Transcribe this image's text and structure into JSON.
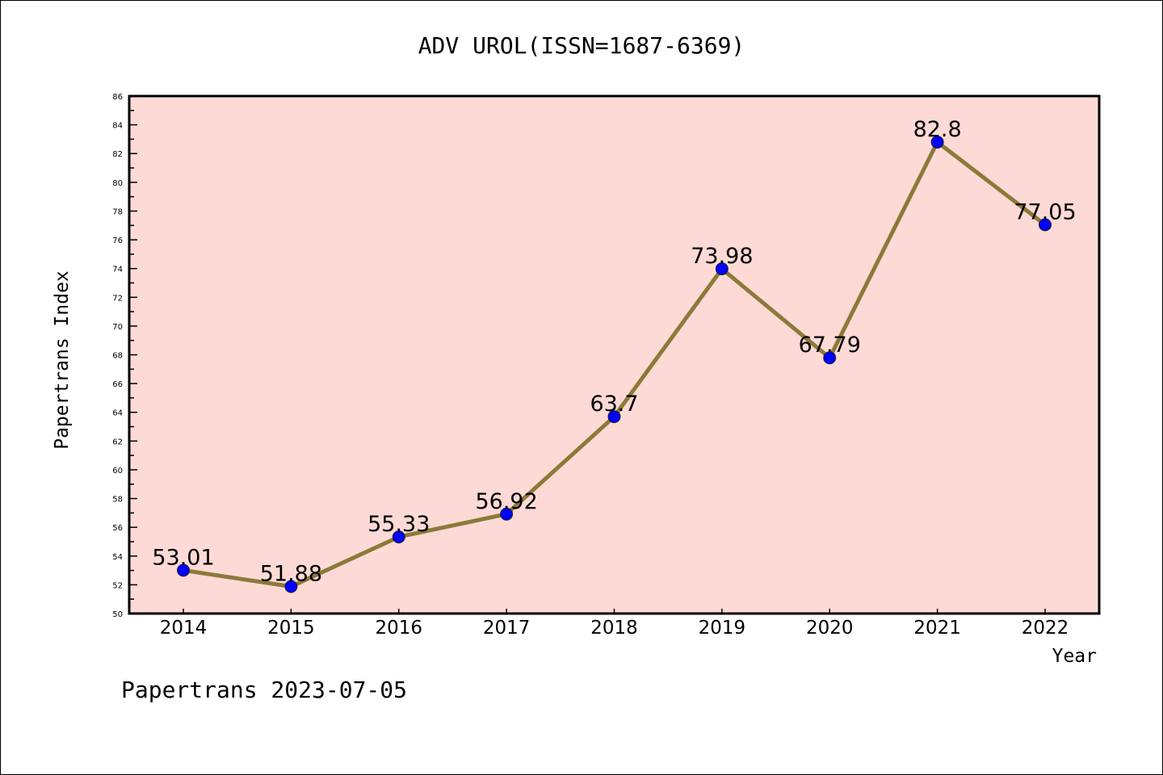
{
  "chart_data": {
    "type": "line",
    "title": "ADV UROL(ISSN=1687-6369)",
    "xlabel": "Year",
    "ylabel": "Papertrans Index",
    "categories": [
      "2014",
      "2015",
      "2016",
      "2017",
      "2018",
      "2019",
      "2020",
      "2021",
      "2022"
    ],
    "series": [
      {
        "name": "Papertrans Index",
        "values": [
          53.01,
          51.88,
          55.33,
          56.92,
          63.7,
          73.98,
          67.79,
          82.8,
          77.05
        ]
      }
    ],
    "data_labels": [
      "53.01",
      "51.88",
      "55.33",
      "56.92",
      "63.7",
      "73.98",
      "67.79",
      "82.8",
      "77.05"
    ],
    "ylim": [
      50,
      86
    ],
    "yticks": [
      50,
      52,
      54,
      56,
      58,
      60,
      62,
      64,
      66,
      68,
      70,
      72,
      74,
      76,
      78,
      80,
      82,
      84,
      86
    ],
    "grid": false,
    "footer": "Papertrans 2023-07-05",
    "colors": {
      "background": "#fddad6",
      "line": "#8b7a38",
      "marker": "#0000ff"
    }
  }
}
